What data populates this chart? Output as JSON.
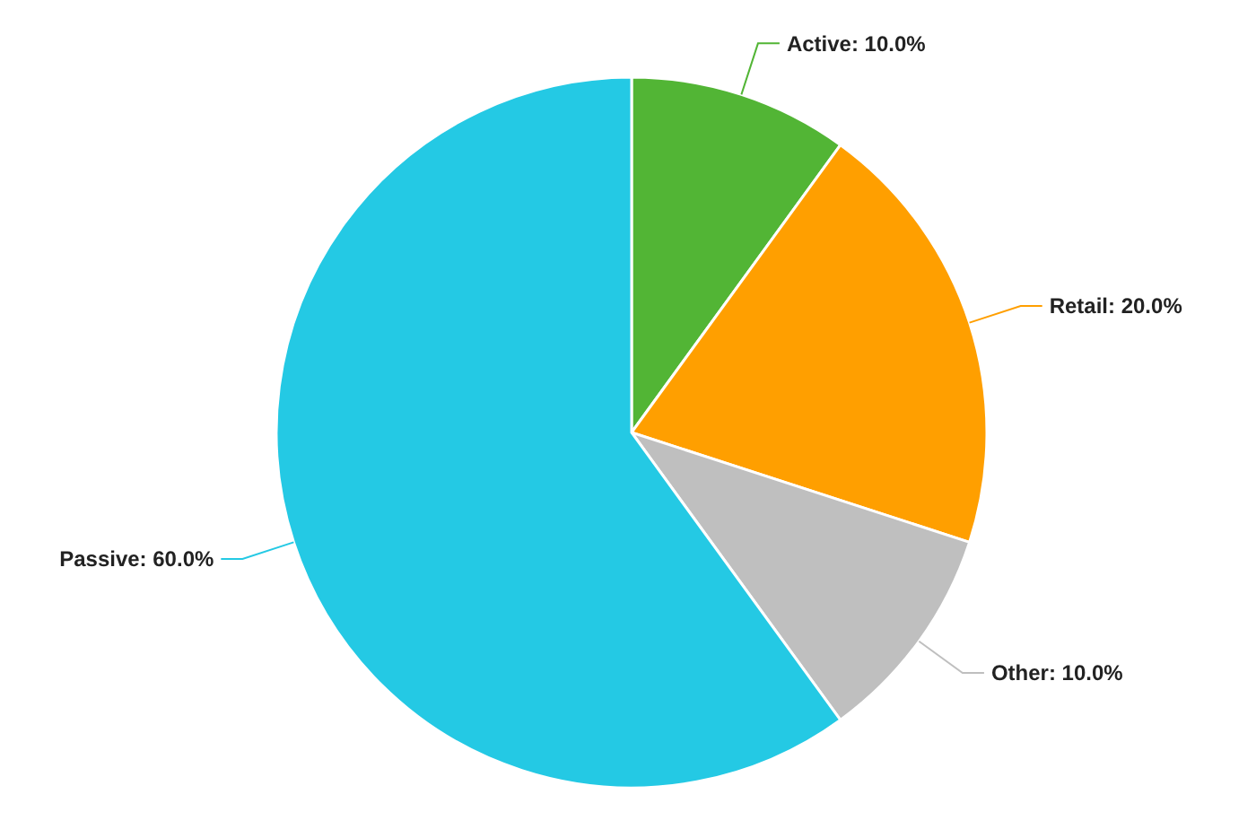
{
  "chart_data": {
    "type": "pie",
    "categories": [
      "Active",
      "Retail",
      "Other",
      "Passive"
    ],
    "values": [
      10,
      20,
      10,
      60
    ],
    "value_labels": [
      "10.0%",
      "20.0%",
      "10.0%",
      "60.0%"
    ],
    "colors": [
      "#52b535",
      "#ff9f00",
      "#bfbfbf",
      "#24c9e4"
    ]
  }
}
